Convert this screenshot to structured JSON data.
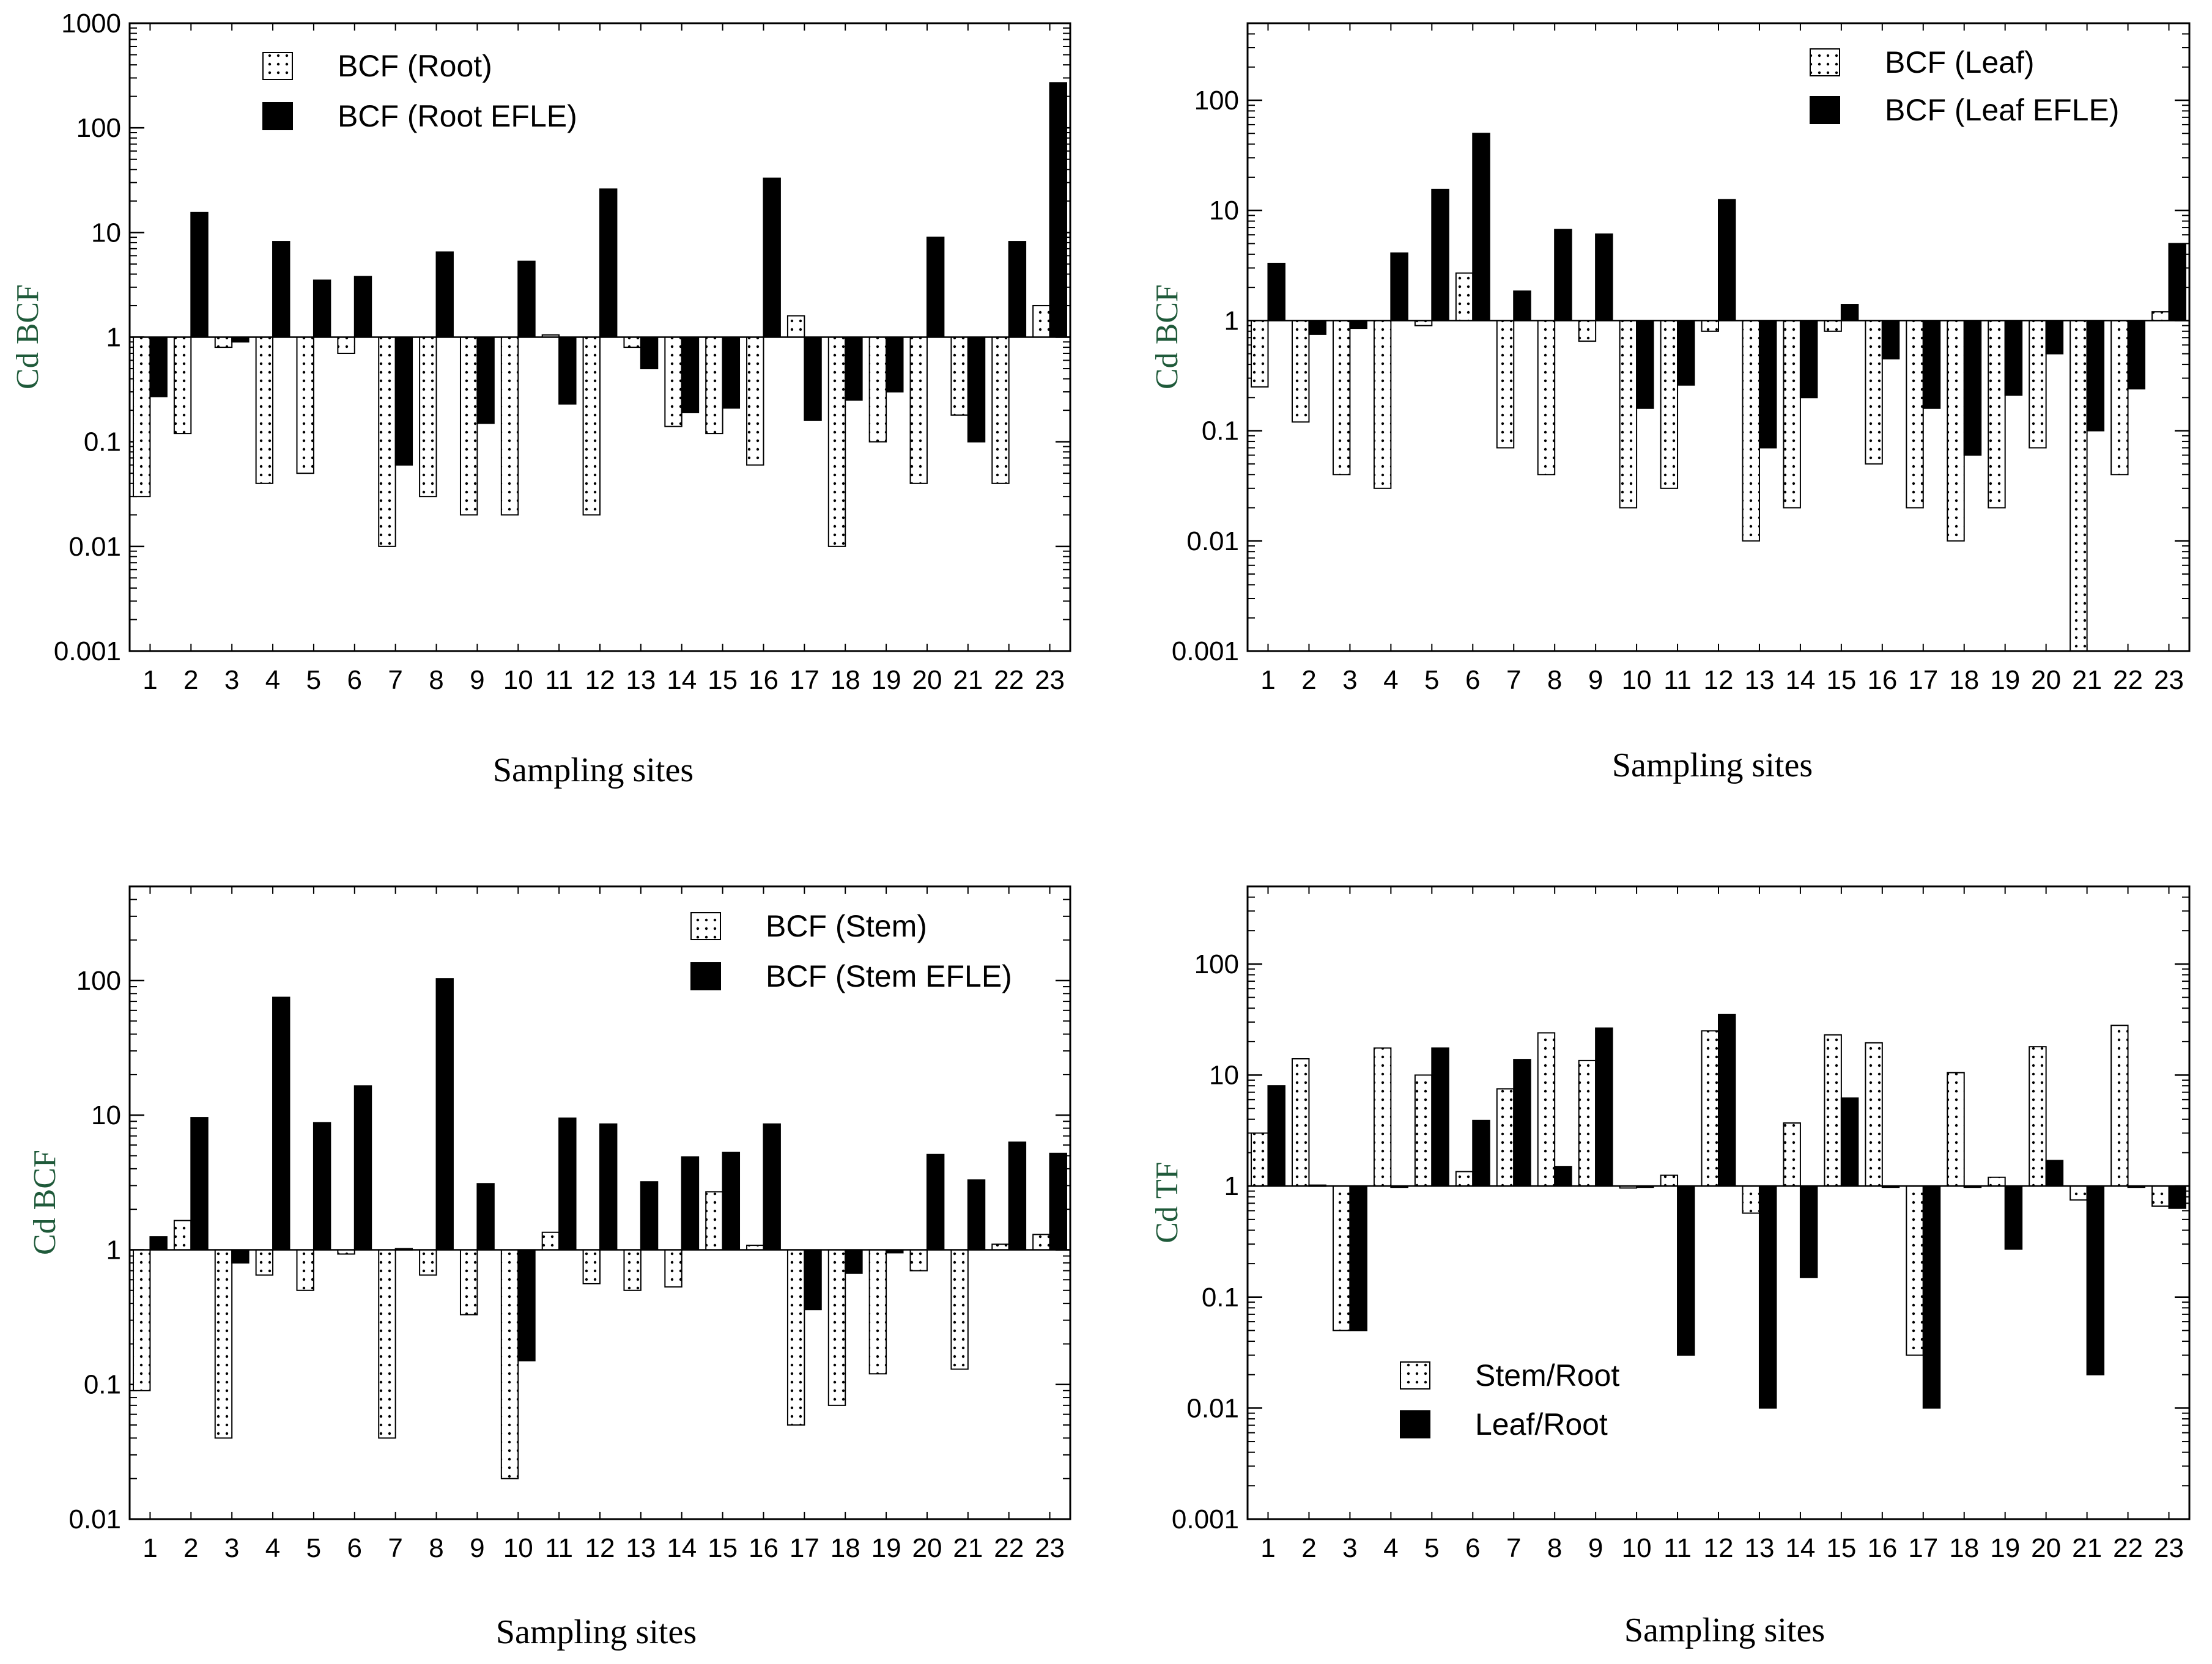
{
  "chart_data": [
    {
      "type": "bar",
      "scale": "log",
      "baseline": 1,
      "ylim": [
        0.001,
        1000
      ],
      "yticks": [
        0.001,
        0.01,
        0.1,
        1,
        10,
        100,
        1000
      ],
      "ytick_labels": [
        "0.001",
        "0.01",
        "0.1",
        "1",
        "10",
        "100",
        "1000"
      ],
      "xlabel": "Sampling sites",
      "ylabel": "Cd BCF",
      "legend_position": "top-left",
      "categories": [
        "1",
        "2",
        "3",
        "4",
        "5",
        "6",
        "7",
        "8",
        "9",
        "10",
        "11",
        "12",
        "13",
        "14",
        "15",
        "16",
        "17",
        "18",
        "19",
        "20",
        "21",
        "22",
        "23"
      ],
      "series": [
        {
          "name": "BCF (Root)",
          "style": "dotted",
          "values": [
            0.03,
            0.12,
            0.8,
            0.04,
            0.05,
            0.7,
            0.01,
            0.03,
            0.02,
            0.02,
            1.05,
            0.02,
            0.8,
            0.14,
            0.12,
            0.06,
            1.6,
            0.01,
            0.1,
            0.04,
            0.18,
            0.04,
            2.0
          ]
        },
        {
          "name": "BCF (Root EFLE)",
          "style": "solid",
          "values": [
            0.27,
            15.5,
            0.9,
            8.2,
            3.5,
            3.8,
            0.06,
            6.5,
            0.15,
            5.3,
            0.23,
            26,
            0.5,
            0.19,
            0.21,
            33,
            0.16,
            0.25,
            0.3,
            9,
            0.1,
            8.2,
            270
          ]
        }
      ]
    },
    {
      "type": "bar",
      "scale": "log",
      "baseline": 1,
      "ylim": [
        0.001,
        500
      ],
      "yticks": [
        0.001,
        0.01,
        0.1,
        1,
        10,
        100
      ],
      "ytick_labels": [
        "0.001",
        "0.01",
        "0.1",
        "1",
        "10",
        "100"
      ],
      "xlabel": "Sampling sites",
      "ylabel": "Cd BCF",
      "legend_position": "top-right",
      "categories": [
        "1",
        "2",
        "3",
        "4",
        "5",
        "6",
        "7",
        "8",
        "9",
        "10",
        "11",
        "12",
        "13",
        "14",
        "15",
        "16",
        "17",
        "18",
        "19",
        "20",
        "21",
        "22",
        "23"
      ],
      "series": [
        {
          "name": "BCF (Leaf)",
          "style": "dotted",
          "values": [
            0.25,
            0.12,
            0.04,
            0.03,
            0.9,
            2.7,
            0.07,
            0.04,
            0.65,
            0.02,
            0.03,
            0.8,
            0.01,
            0.02,
            0.8,
            0.05,
            0.02,
            0.01,
            0.02,
            0.07,
            0.001,
            0.04,
            1.2
          ]
        },
        {
          "name": "BCF (Leaf EFLE)",
          "style": "solid",
          "values": [
            3.3,
            0.75,
            0.85,
            4.1,
            15.5,
            50,
            1.85,
            6.7,
            6.1,
            0.16,
            0.26,
            12.5,
            0.07,
            0.2,
            1.4,
            0.45,
            0.16,
            0.06,
            0.21,
            0.5,
            0.1,
            0.24,
            5
          ]
        }
      ]
    },
    {
      "type": "bar",
      "scale": "log",
      "baseline": 1,
      "ylim": [
        0.01,
        500
      ],
      "yticks": [
        0.01,
        0.1,
        1,
        10,
        100
      ],
      "ytick_labels": [
        "0.01",
        "0.1",
        "1",
        "10",
        "100"
      ],
      "xlabel": "Sampling sites",
      "ylabel": "Cd BCF",
      "legend_position": "top-right",
      "categories": [
        "1",
        "2",
        "3",
        "4",
        "5",
        "6",
        "7",
        "8",
        "9",
        "10",
        "11",
        "12",
        "13",
        "14",
        "15",
        "16",
        "17",
        "18",
        "19",
        "20",
        "21",
        "22",
        "23"
      ],
      "series": [
        {
          "name": "BCF (Stem)",
          "style": "dotted",
          "values": [
            0.09,
            1.65,
            0.04,
            0.65,
            0.5,
            0.93,
            0.04,
            0.65,
            0.33,
            0.02,
            1.35,
            0.56,
            0.5,
            0.53,
            2.7,
            1.08,
            0.05,
            0.07,
            0.12,
            0.7,
            0.13,
            1.1,
            1.3
          ]
        },
        {
          "name": "BCF (Stem EFLE)",
          "style": "solid",
          "values": [
            1.25,
            9.6,
            0.8,
            75,
            8.8,
            16.5,
            1.02,
            103,
            3.1,
            0.15,
            9.5,
            8.6,
            3.2,
            4.9,
            5.3,
            8.6,
            0.36,
            0.67,
            0.95,
            5.1,
            3.3,
            6.3,
            5.2
          ]
        }
      ]
    },
    {
      "type": "bar",
      "scale": "log",
      "baseline": 1,
      "ylim": [
        0.001,
        500
      ],
      "yticks": [
        0.001,
        0.01,
        0.1,
        1,
        10,
        100
      ],
      "ytick_labels": [
        "0.001",
        "0.01",
        "0.1",
        "1",
        "10",
        "100"
      ],
      "xlabel": "Sampling sites",
      "ylabel": "Cd TF",
      "legend_position": "bottom-left",
      "categories": [
        "1",
        "2",
        "3",
        "4",
        "5",
        "6",
        "7",
        "8",
        "9",
        "10",
        "11",
        "12",
        "13",
        "14",
        "15",
        "16",
        "17",
        "18",
        "19",
        "20",
        "21",
        "22",
        "23"
      ],
      "series": [
        {
          "name": "Stem/Root",
          "style": "dotted",
          "values": [
            3,
            14,
            0.05,
            17.5,
            10,
            1.35,
            7.5,
            24,
            13.5,
            0.96,
            1.25,
            25,
            0.57,
            3.7,
            23,
            19.5,
            0.03,
            10.5,
            1.2,
            18,
            0.75,
            28,
            0.66
          ]
        },
        {
          "name": "Leaf/Root",
          "style": "solid",
          "values": [
            8,
            1.02,
            0.05,
            0.98,
            17.5,
            3.9,
            13.8,
            1.5,
            26.5,
            1.0,
            0.03,
            35,
            0.01,
            0.15,
            6.2,
            0.98,
            0.01,
            1.0,
            0.27,
            1.7,
            0.02,
            1.0,
            0.63
          ]
        }
      ]
    }
  ]
}
